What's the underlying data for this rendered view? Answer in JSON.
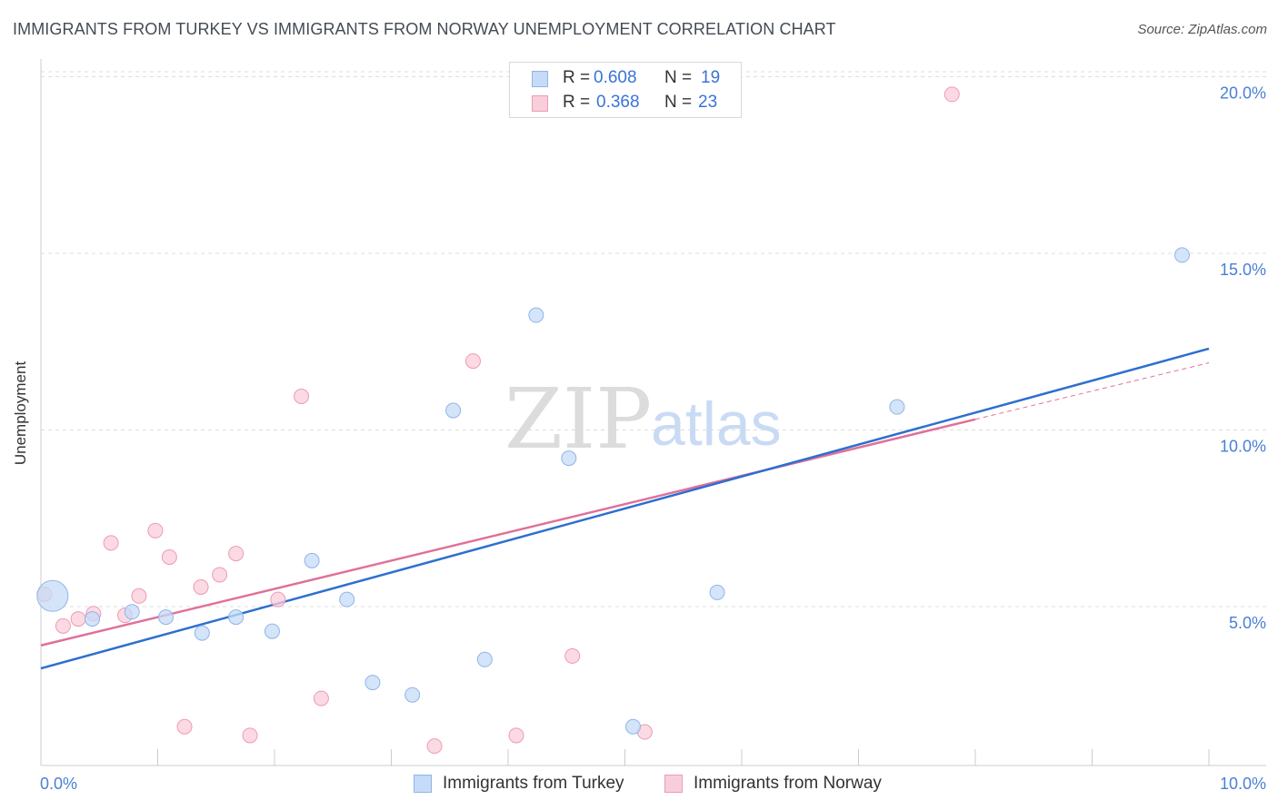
{
  "title": "IMMIGRANTS FROM TURKEY VS IMMIGRANTS FROM NORWAY UNEMPLOYMENT CORRELATION CHART",
  "source": "Source: ZipAtlas.com",
  "watermark": {
    "zip": "ZIP",
    "atlas": "atlas"
  },
  "legend": {
    "rows": [
      {
        "r_label": "R =",
        "r_value": "0.608",
        "n_label": "N =",
        "n_value": "19"
      },
      {
        "r_label": "R =",
        "r_value": "0.368",
        "n_label": "N =",
        "n_value": "23"
      }
    ]
  },
  "colors": {
    "turkey_fill": "#c5dbf7",
    "turkey_stroke": "#8fb5e8",
    "turkey_line": "#2d6fcf",
    "norway_fill": "#f9cedb",
    "norway_stroke": "#ee9ab4",
    "norway_line": "#e0709a",
    "tick_label": "#4a7fd4",
    "grid": "#dddddd"
  },
  "chart_data": {
    "type": "scatter",
    "title": "IMMIGRANTS FROM TURKEY VS IMMIGRANTS FROM NORWAY UNEMPLOYMENT CORRELATION CHART",
    "xlabel": "",
    "ylabel": "Unemployment",
    "xlim": [
      0,
      10
    ],
    "ylim": [
      0.5,
      20.5
    ],
    "x_tick_labels": [
      "0.0%",
      "10.0%"
    ],
    "y_ticks": [
      5,
      10,
      15,
      20
    ],
    "y_tick_labels": [
      "5.0%",
      "10.0%",
      "15.0%",
      "20.0%"
    ],
    "grid": true,
    "series": [
      {
        "name": "Immigrants from Turkey",
        "r": 0.608,
        "n": 19,
        "points": [
          {
            "x": 0.1,
            "y": 5.3,
            "size": "large"
          },
          {
            "x": 0.44,
            "y": 4.65
          },
          {
            "x": 0.78,
            "y": 4.85
          },
          {
            "x": 1.07,
            "y": 4.7
          },
          {
            "x": 1.38,
            "y": 4.25
          },
          {
            "x": 1.67,
            "y": 4.7
          },
          {
            "x": 1.98,
            "y": 4.3
          },
          {
            "x": 2.32,
            "y": 6.3
          },
          {
            "x": 2.62,
            "y": 5.2
          },
          {
            "x": 2.84,
            "y": 2.85
          },
          {
            "x": 3.18,
            "y": 2.5
          },
          {
            "x": 3.53,
            "y": 10.55
          },
          {
            "x": 3.8,
            "y": 3.5
          },
          {
            "x": 4.24,
            "y": 13.25
          },
          {
            "x": 4.52,
            "y": 9.2
          },
          {
            "x": 5.07,
            "y": 1.6
          },
          {
            "x": 5.79,
            "y": 5.4
          },
          {
            "x": 7.33,
            "y": 10.65
          },
          {
            "x": 9.77,
            "y": 14.95
          }
        ],
        "trend": {
          "x0": 0,
          "y0": 3.25,
          "x1": 10,
          "y1": 12.3
        }
      },
      {
        "name": "Immigrants from Norway",
        "r": 0.368,
        "n": 23,
        "points": [
          {
            "x": 0.03,
            "y": 5.35
          },
          {
            "x": 0.19,
            "y": 4.45
          },
          {
            "x": 0.32,
            "y": 4.65
          },
          {
            "x": 0.45,
            "y": 4.8
          },
          {
            "x": 0.6,
            "y": 6.8
          },
          {
            "x": 0.72,
            "y": 4.75
          },
          {
            "x": 0.84,
            "y": 5.3
          },
          {
            "x": 0.98,
            "y": 7.15
          },
          {
            "x": 1.1,
            "y": 6.4
          },
          {
            "x": 1.23,
            "y": 1.6
          },
          {
            "x": 1.37,
            "y": 5.55
          },
          {
            "x": 1.53,
            "y": 5.9
          },
          {
            "x": 1.67,
            "y": 6.5
          },
          {
            "x": 1.79,
            "y": 1.35
          },
          {
            "x": 2.03,
            "y": 5.2
          },
          {
            "x": 2.23,
            "y": 10.95
          },
          {
            "x": 2.4,
            "y": 2.4
          },
          {
            "x": 3.37,
            "y": 1.05
          },
          {
            "x": 3.7,
            "y": 11.95
          },
          {
            "x": 4.07,
            "y": 1.35
          },
          {
            "x": 4.55,
            "y": 3.6
          },
          {
            "x": 5.17,
            "y": 1.45
          },
          {
            "x": 7.8,
            "y": 19.5
          }
        ],
        "trend": {
          "x0": 0,
          "y0": 3.9,
          "x1": 8,
          "y1": 10.3
        },
        "trend_dashed": {
          "x0": 8,
          "y0": 10.3,
          "x1": 10,
          "y1": 11.9
        }
      }
    ]
  }
}
